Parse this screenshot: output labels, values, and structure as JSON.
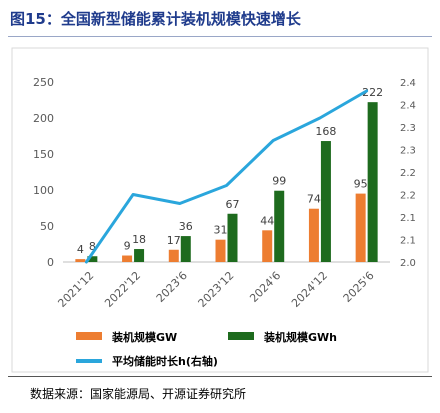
{
  "title": "图15：全国新型储能累计装机规模快速增长",
  "source": "数据来源：国家能源局、开源证券研究所",
  "colors": {
    "title": "#1f3b8c",
    "bar_gw": "#ed7d31",
    "bar_gwh": "#1e6b1e",
    "line": "#2aa6dc",
    "frame": "#d9d9d9",
    "text": "#595959"
  },
  "chart_data": {
    "type": "bar",
    "categories": [
      "2021'12",
      "2022'12",
      "2023'6",
      "2023'12",
      "2024'6",
      "2024'12",
      "2025'6"
    ],
    "series": [
      {
        "name": "装机规模GW",
        "kind": "bar",
        "axis": "left",
        "values": [
          4,
          9,
          17,
          31,
          44,
          74,
          95
        ],
        "data_labels": [
          "4",
          "9",
          "17",
          "31",
          "44",
          "74",
          "95"
        ]
      },
      {
        "name": "装机规模GWh",
        "kind": "bar",
        "axis": "left",
        "values": [
          8,
          18,
          36,
          67,
          99,
          168,
          222
        ],
        "data_labels": [
          "8",
          "18",
          "36",
          "67",
          "99",
          "168",
          "222"
        ]
      },
      {
        "name": "平均储能时长h(右轴)",
        "kind": "line",
        "axis": "right",
        "values": [
          2.0,
          2.15,
          2.13,
          2.17,
          2.27,
          2.32,
          2.38
        ]
      }
    ],
    "y_left": {
      "min": 0,
      "max": 250,
      "ticks": [
        "0",
        "50",
        "100",
        "150",
        "200",
        "250"
      ]
    },
    "y_right": {
      "min": 2.0,
      "max": 2.4,
      "ticks": [
        "2.0",
        "2.1",
        "2.1",
        "2.2",
        "2.2",
        "2.3",
        "2.3",
        "2.4",
        "2.4"
      ]
    },
    "grid": false,
    "legend_position": "bottom"
  }
}
